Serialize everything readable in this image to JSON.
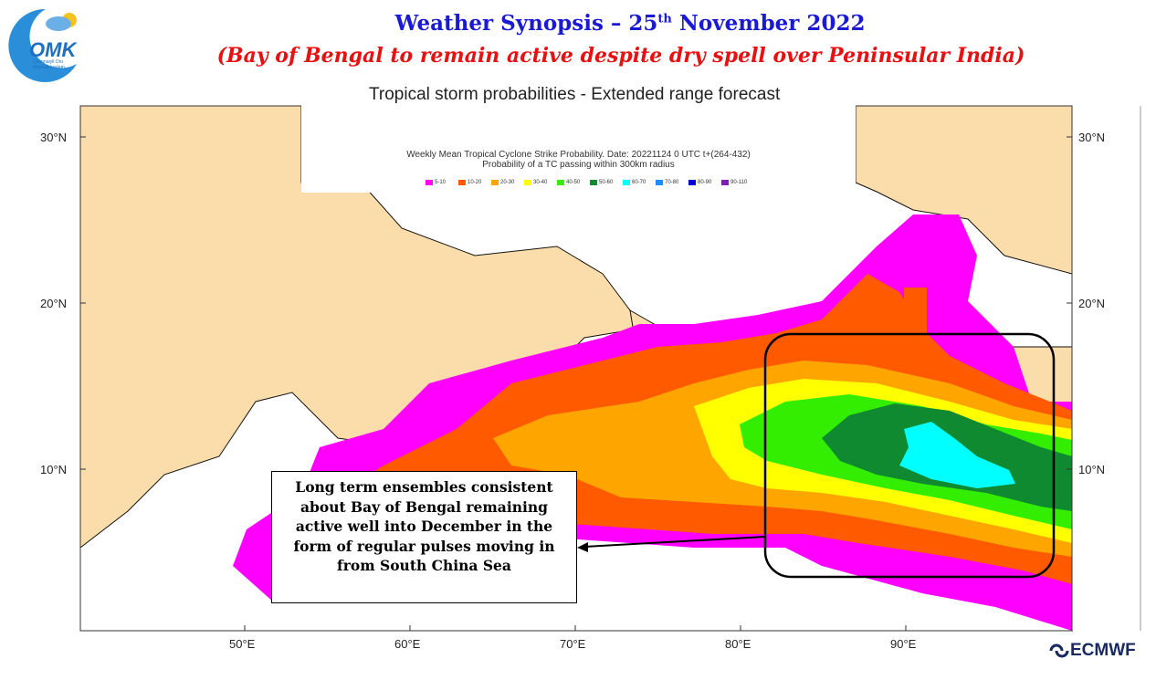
{
  "header": {
    "title_prefix": "Weather Synopsis – 25",
    "title_sup": "th",
    "title_suffix": " November 2022",
    "subtitle": "(Bay of Bengal to remain active despite dry spell over Peninsular India)"
  },
  "logo": {
    "text": "OMK",
    "tagline": "Chennaiyil Oru Mazhaikkaalam"
  },
  "forecast_panel": {
    "title": "Tropical storm probabilities - Extended range forecast",
    "strike_line1": "Weekly Mean Tropical Cyclone Strike Probability. Date: 20221124  0 UTC  t+(264-432)",
    "strike_line2": "Probability of a TC passing within  300km radius"
  },
  "legend": [
    {
      "label": "5-10",
      "color": "#ff00ff"
    },
    {
      "label": "10-20",
      "color": "#ff5a00"
    },
    {
      "label": "20-30",
      "color": "#ffa500"
    },
    {
      "label": "30-40",
      "color": "#ffff00"
    },
    {
      "label": "40-50",
      "color": "#33ee00"
    },
    {
      "label": "50-60",
      "color": "#108a30"
    },
    {
      "label": "60-70",
      "color": "#00ffff"
    },
    {
      "label": "70-80",
      "color": "#1e8cff"
    },
    {
      "label": "80-90",
      "color": "#0000cc"
    },
    {
      "label": "90-110",
      "color": "#7a1fb0"
    }
  ],
  "axes": {
    "lat_labels": [
      "30°N",
      "20°N",
      "10°N"
    ],
    "lon_labels": [
      "50°E",
      "60°E",
      "70°E",
      "80°E",
      "90°E"
    ]
  },
  "annotation": {
    "text": "Long term ensembles consistent about Bay of Bengal remaining active well into December in the form of regular pulses moving in from South China Sea"
  },
  "footer": {
    "brand": "ECMWF"
  },
  "colors": {
    "land": "#fbdcab",
    "sea": "#ffffff",
    "title_blue": "#1a1ad6",
    "subtitle_red": "#e81010"
  }
}
